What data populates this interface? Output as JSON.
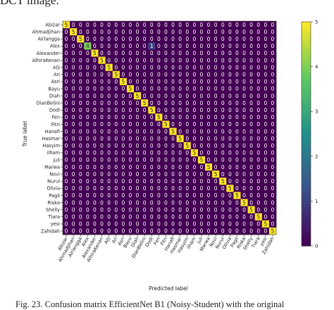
{
  "header_fragment": "DCT image.",
  "caption": "Fig. 23. Confusion matrix EfficientNet B1 (Noisy-Student) with the original",
  "chart_data": {
    "type": "heatmap",
    "title": "",
    "xlabel": "Predicted label",
    "ylabel": "True label",
    "labels": [
      "Abizar",
      "Ahmadjihan",
      "Airlangga",
      "Alex",
      "Alexander",
      "AlhiraKenan",
      "Alji",
      "Ari",
      "Asri",
      "Bayu",
      "Diah",
      "DianBelini",
      "Dodi",
      "Fen",
      "Fitri",
      "Hanafi",
      "Hasmar",
      "Hasyim",
      "ilham",
      "juli",
      "Marwa",
      "Novi",
      "Nurul",
      "Olivia",
      "Pagil",
      "Riska",
      "Shelly",
      "Tiara",
      "yesi",
      "Zahidah"
    ],
    "diagonal": [
      5,
      5,
      5,
      4,
      5,
      5,
      5,
      5,
      5,
      5,
      5,
      5,
      5,
      5,
      5,
      5,
      5,
      5,
      5,
      5,
      5,
      5,
      5,
      5,
      5,
      5,
      5,
      5,
      5,
      5
    ],
    "off_diagonal": [
      {
        "row": 3,
        "col": 12,
        "value": 1
      }
    ],
    "value_range": [
      0,
      5
    ],
    "colorbar_ticks": [
      0,
      1,
      2,
      3,
      4,
      5
    ],
    "colormap": "viridis",
    "colors": {
      "low": "#440154",
      "mid_low": "#3b528b",
      "mid": "#21918c",
      "mid_high": "#5ec962",
      "high": "#fde725"
    }
  }
}
